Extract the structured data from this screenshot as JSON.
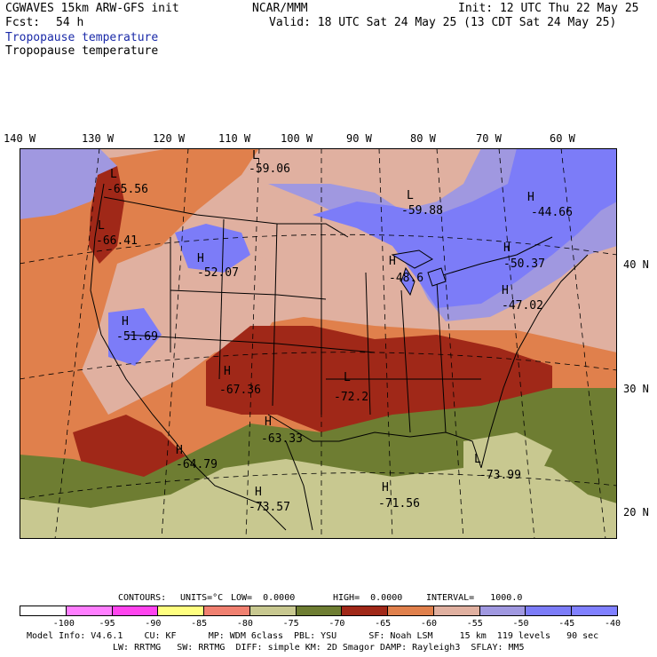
{
  "header": {
    "left1": "CGWAVES 15km ARW-GFS init",
    "left2_label": "Fcst:",
    "left2_value": "54 h",
    "center": "NCAR/MMM",
    "init": "Init: 12 UTC Thu 22 May 25",
    "valid": "Valid: 18 UTC Sat 24 May 25 (13 CDT Sat 24 May 25)",
    "field1": "Tropopause temperature",
    "field2": "Tropopause temperature"
  },
  "lon_labels": [
    "140 W",
    "130 W",
    "120 W",
    "110 W",
    "100 W",
    "90 W",
    "80 W",
    "70 W",
    "60 W"
  ],
  "lat_labels": [
    "40 N",
    "30 N",
    "20 N"
  ],
  "extrema": [
    {
      "letter": "L",
      "value": "-59.06"
    },
    {
      "letter": "L",
      "value": "-65.56"
    },
    {
      "letter": "L",
      "value": "-66.41"
    },
    {
      "letter": "L",
      "value": "-59.88"
    },
    {
      "letter": "H",
      "value": "-44.66"
    },
    {
      "letter": "H",
      "value": "-52.07"
    },
    {
      "letter": "H",
      "value": "-48.6"
    },
    {
      "letter": "H",
      "value": "-50.37"
    },
    {
      "letter": "H",
      "value": "-47.02"
    },
    {
      "letter": "H",
      "value": "-51.69"
    },
    {
      "letter": "H",
      "value": "-67.36"
    },
    {
      "letter": "L",
      "value": "-72.2"
    },
    {
      "letter": "H",
      "value": "-63.33"
    },
    {
      "letter": "H",
      "value": "-64.79"
    },
    {
      "letter": "L",
      "value": "-73.99"
    },
    {
      "letter": "H",
      "value": "-73.57"
    },
    {
      "letter": "H",
      "value": "-71.56"
    }
  ],
  "contours": {
    "label": "CONTOURS:",
    "units": "UNITS=°C",
    "low": "LOW=  0.0000",
    "high": "HIGH=  0.0000",
    "interval": "INTERVAL=   1000.0"
  },
  "legend": {
    "colors": [
      "#ffffff",
      "#ff7eff",
      "#ff44ee",
      "#ffff80",
      "#f08070",
      "#c8c890",
      "#6e7d32",
      "#a02818",
      "#e0804c",
      "#e0b0a0",
      "#a098e0",
      "#7c7cf8",
      "#8080ff",
      "#8080ff"
    ],
    "labels": [
      "-100",
      "-95",
      "-90",
      "-85",
      "-80",
      "-75",
      "-70",
      "-65",
      "-60",
      "-55",
      "-50",
      "-45",
      "-40",
      "°C"
    ]
  },
  "footer": {
    "line1": "Model Info: V4.6.1    CU: KF      MP: WDM 6class  PBL: YSU      SF: Noah LSM     15 km  119 levels   90 sec",
    "line2": "LW: RRTMG   SW: RRTMG  DIFF: simple KM: 2D Smagor DAMP: Rayleigh3  SFLAY: MM5"
  }
}
